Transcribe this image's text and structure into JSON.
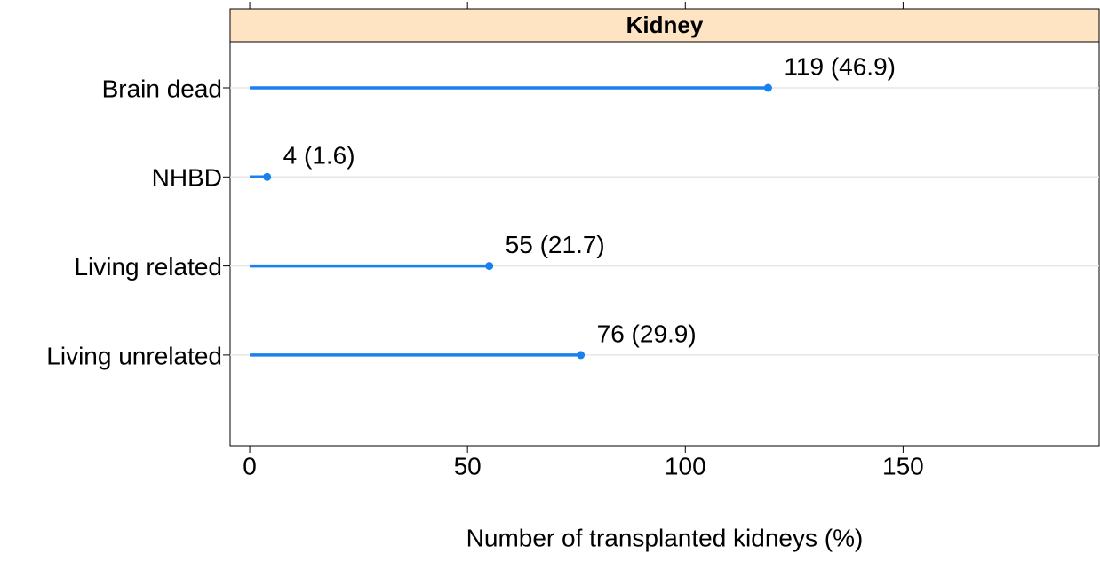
{
  "chart_data": {
    "type": "lollipop",
    "strip_title": "Kidney",
    "x_label": "Number of transplanted kidneys (%)",
    "categories": [
      "Brain dead",
      "NHBD",
      "Living related",
      "Living unrelated"
    ],
    "values": [
      119,
      4,
      55,
      76
    ],
    "value_labels": [
      "119 (46.9)",
      "4 (1.6)",
      "55 (21.7)",
      "76 (29.9)"
    ],
    "color": "#1a80f0",
    "strip_color": "#ffe4c4",
    "xlim": [
      -4.5,
      195
    ],
    "xticks": [
      0,
      50,
      100,
      150
    ],
    "grid": true
  }
}
